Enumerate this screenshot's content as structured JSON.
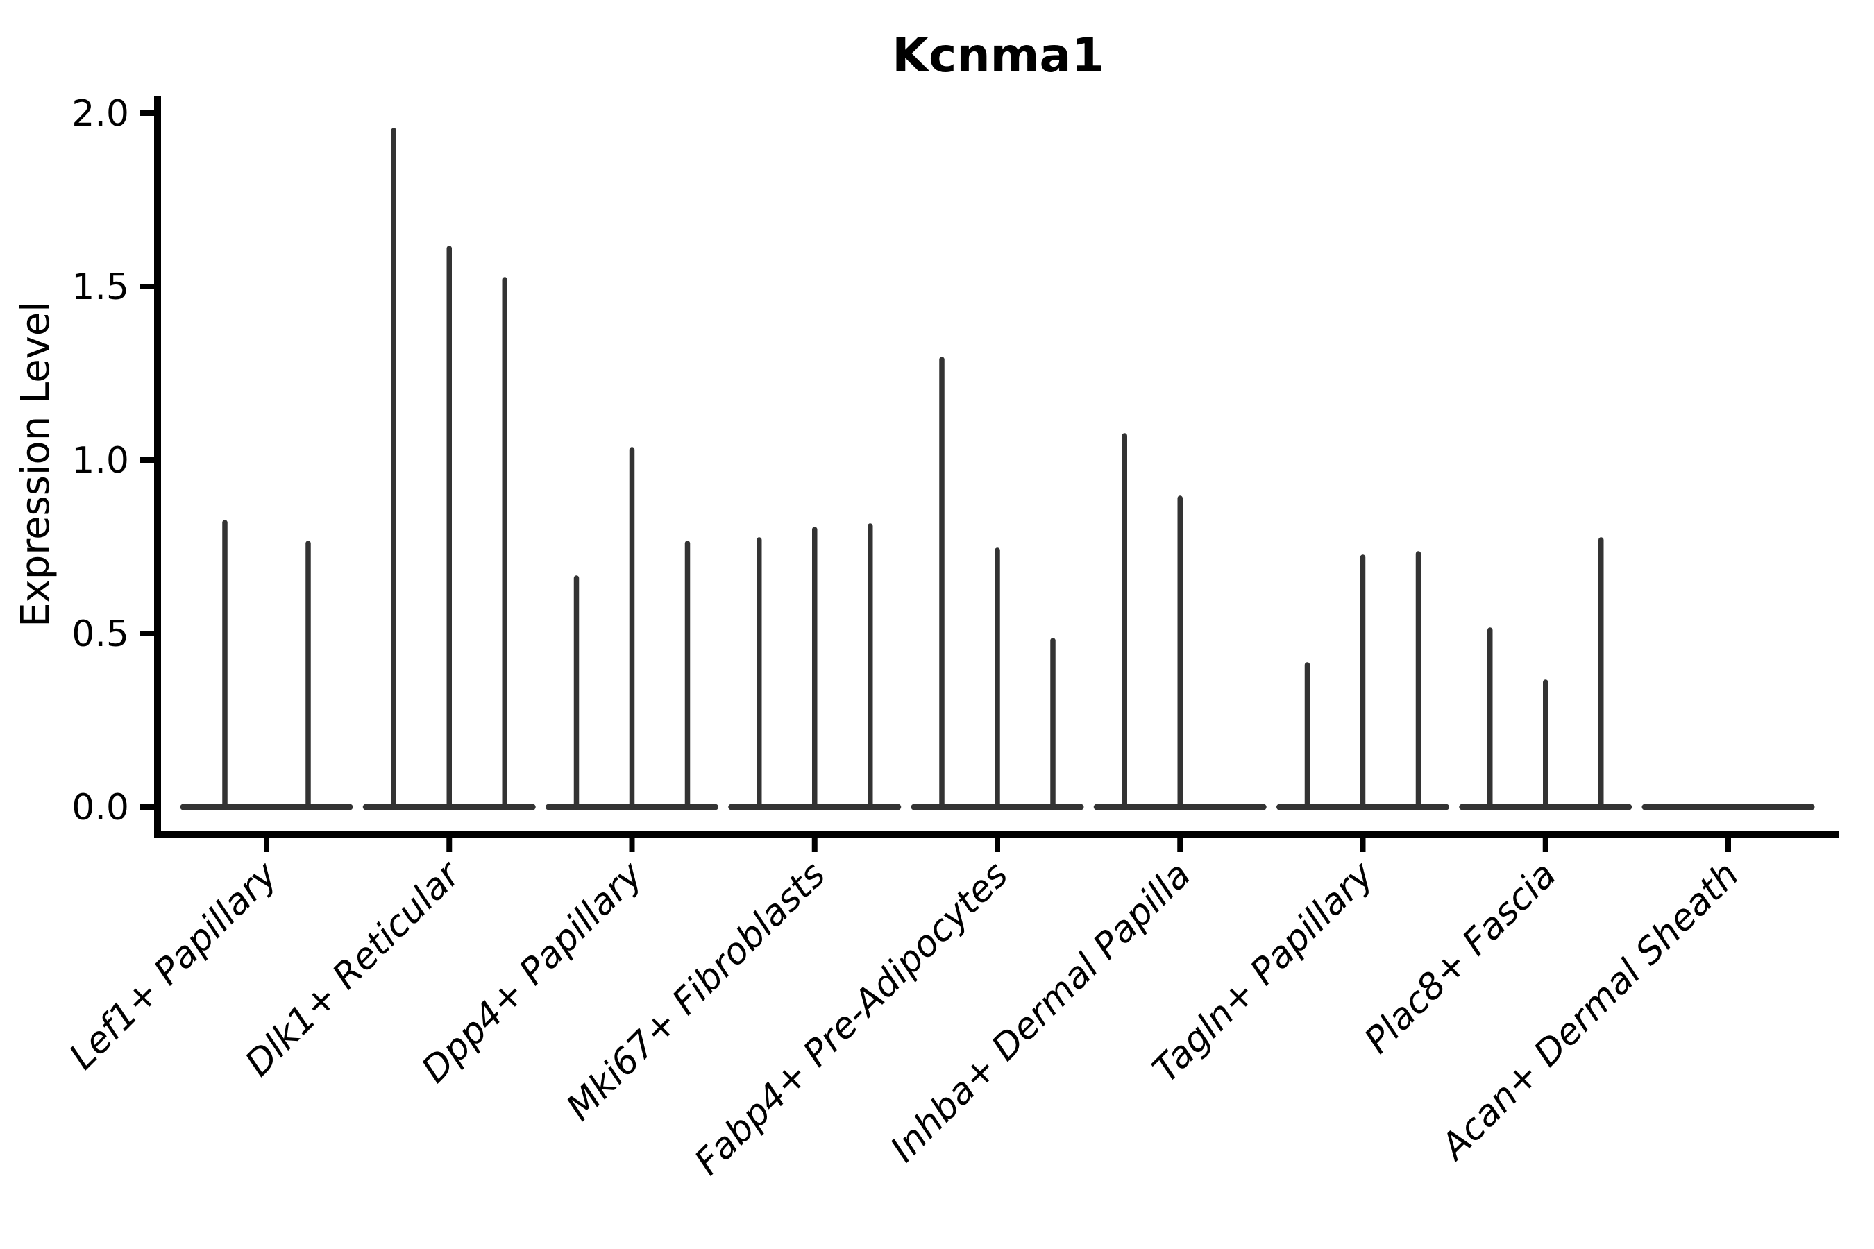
{
  "chart_data": {
    "type": "violin",
    "title": "Kcnma1",
    "xlabel": "",
    "ylabel": "Expression Level",
    "ylim": [
      0.0,
      2.05
    ],
    "yticks": [
      0.0,
      0.5,
      1.0,
      1.5,
      2.0
    ],
    "ytick_labels": [
      "0.0",
      "0.5",
      "1.0",
      "1.5",
      "2.0"
    ],
    "grid": false,
    "legend": "none",
    "style": "single-cell expression violins collapsed to flat zero-density baselines with thin spikes reaching each violin's maximum expression value",
    "categories": [
      "Lef1+ Papillary",
      "Dlk1+ Reticular",
      "Dpp4+ Papillary",
      "Mki67+ Fibroblasts",
      "Fabp4+ Pre-Adipocytes",
      "Inhba+ Dermal Papilla",
      "Tagln+ Papillary",
      "Plac8+ Fascia",
      "Acan+ Dermal Sheath"
    ],
    "groups": [
      {
        "category": "Lef1+ Papillary",
        "violin_maxima": [
          0.82,
          0.76
        ]
      },
      {
        "category": "Dlk1+ Reticular",
        "violin_maxima": [
          1.95,
          1.61,
          1.52
        ]
      },
      {
        "category": "Dpp4+ Papillary",
        "violin_maxima": [
          0.66,
          1.03,
          0.76
        ]
      },
      {
        "category": "Mki67+ Fibroblasts",
        "violin_maxima": [
          0.77,
          0.8,
          0.81
        ]
      },
      {
        "category": "Fabp4+ Pre-Adipocytes",
        "violin_maxima": [
          1.29,
          0.74,
          0.48
        ]
      },
      {
        "category": "Inhba+ Dermal Papilla",
        "violin_maxima": [
          1.07,
          0.89,
          0.0
        ]
      },
      {
        "category": "Tagln+ Papillary",
        "violin_maxima": [
          0.41,
          0.72,
          0.73
        ]
      },
      {
        "category": "Plac8+ Fascia",
        "violin_maxima": [
          0.51,
          0.36,
          0.77
        ]
      },
      {
        "category": "Acan+ Dermal Sheath",
        "violin_maxima": [
          0.0,
          0.0,
          0.0
        ]
      }
    ],
    "colors": {
      "violin_line": "#333333",
      "spine": "#000000",
      "text": "#000000",
      "background": "#ffffff"
    }
  }
}
